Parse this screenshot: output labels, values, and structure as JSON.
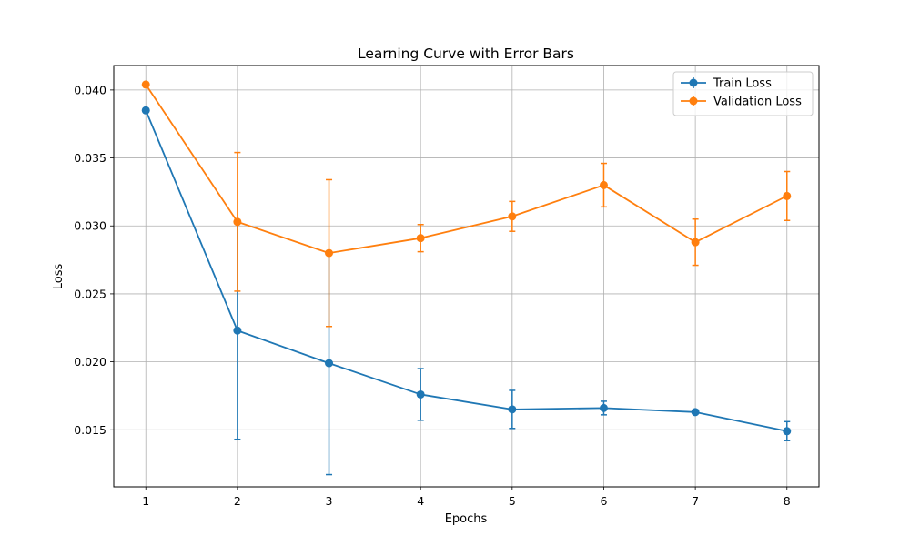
{
  "chart_data": {
    "type": "line",
    "title": "Learning Curve with Error Bars",
    "xlabel": "Epochs",
    "ylabel": "Loss",
    "x": [
      1,
      2,
      3,
      4,
      5,
      6,
      7,
      8
    ],
    "xlim": [
      0.65,
      8.35
    ],
    "ylim": [
      0.0108,
      0.0418
    ],
    "xticks": [
      "1",
      "2",
      "3",
      "4",
      "5",
      "6",
      "7",
      "8"
    ],
    "yticks": [
      {
        "value": 0.015,
        "label": "0.015"
      },
      {
        "value": 0.02,
        "label": "0.020"
      },
      {
        "value": 0.025,
        "label": "0.025"
      },
      {
        "value": 0.03,
        "label": "0.030"
      },
      {
        "value": 0.035,
        "label": "0.035"
      },
      {
        "value": 0.04,
        "label": "0.040"
      }
    ],
    "grid": true,
    "legend_position": "top-right",
    "series": [
      {
        "name": "Train Loss",
        "color": "#1f77b4",
        "values": [
          0.0385,
          0.0223,
          0.0199,
          0.0176,
          0.0165,
          0.0166,
          0.0163,
          0.0149
        ],
        "errors": [
          0.0,
          0.008,
          0.0082,
          0.0019,
          0.0014,
          0.0005,
          0.0001,
          0.0007
        ]
      },
      {
        "name": "Validation Loss",
        "color": "#ff7f0e",
        "values": [
          0.0404,
          0.0303,
          0.028,
          0.0291,
          0.0307,
          0.033,
          0.0288,
          0.0322
        ],
        "errors": [
          0.0,
          0.0051,
          0.0054,
          0.001,
          0.0011,
          0.0016,
          0.0017,
          0.0018
        ]
      }
    ]
  }
}
